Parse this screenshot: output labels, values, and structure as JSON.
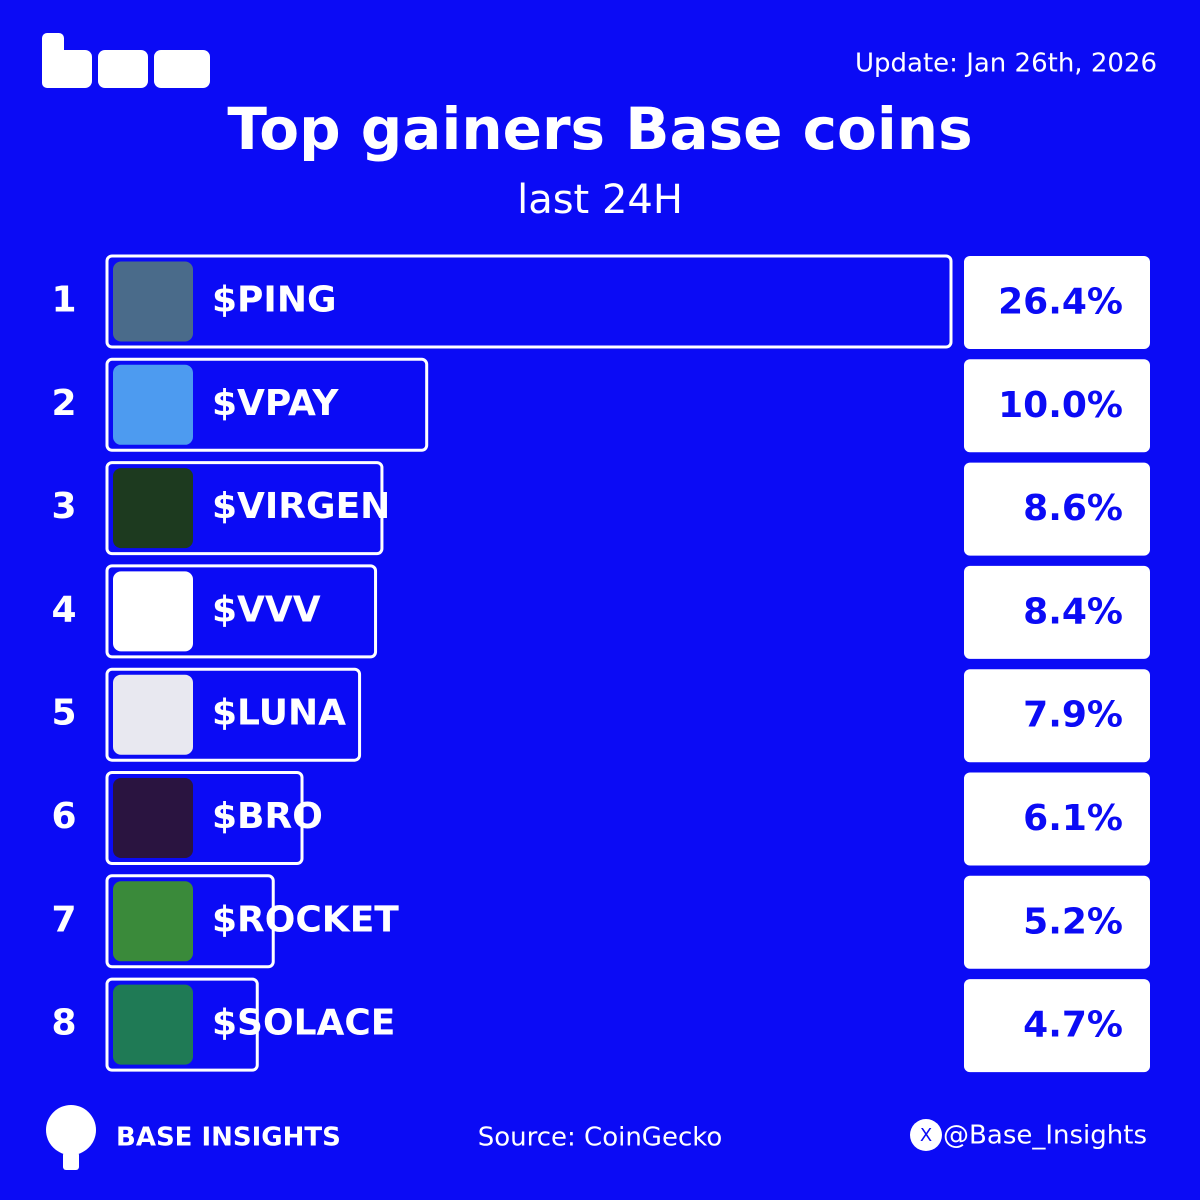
{
  "chart_data": {
    "type": "bar",
    "orientation": "horizontal",
    "title": "Top gainers Base coins",
    "subtitle": "last 24H",
    "update": "Update: Jan 26th, 2026",
    "source": "Source: CoinGecko",
    "brand": "BASE INSIGHTS",
    "handle": "@Base_Insights",
    "ranks": [
      1,
      2,
      3,
      4,
      5,
      6,
      7,
      8
    ],
    "categories": [
      "$PING",
      "$VPAY",
      "$VIRGEN",
      "$VVV",
      "$LUNA",
      "$BRO",
      "$ROCKET",
      "$SOLACE"
    ],
    "values": [
      26.4,
      10.0,
      8.6,
      8.4,
      7.9,
      6.1,
      5.2,
      4.7
    ],
    "value_labels": [
      "26.4%",
      "10.0%",
      "8.6%",
      "8.4%",
      "7.9%",
      "6.1%",
      "5.2%",
      "4.7%"
    ],
    "icon_colors": [
      "#4a6b8a",
      "#4d9bf0",
      "#1d3a1f",
      "#ffffff",
      "#e8e8f0",
      "#2a1440",
      "#3a8a3a",
      "#1f7a55"
    ],
    "color": "#0b0bf5"
  }
}
